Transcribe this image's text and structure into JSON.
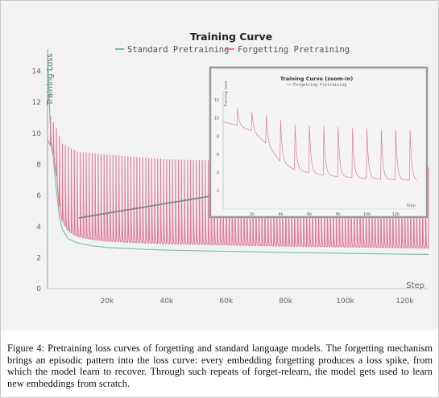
{
  "chart_data": [
    {
      "type": "line",
      "title": "Training Curve",
      "xlabel": "Step",
      "ylabel": "Training Loss",
      "xlim": [
        0,
        128000
      ],
      "ylim": [
        0,
        15
      ],
      "x_ticks": [
        "20k",
        "40k",
        "60k",
        "80k",
        "100k",
        "120k"
      ],
      "y_ticks": [
        "0",
        "2",
        "4",
        "6",
        "8",
        "10",
        "12",
        "14"
      ],
      "grid": false,
      "legend": "top-center",
      "series": [
        {
          "name": "Standard Pretraining",
          "color": "#6fc2a6",
          "x": [
            0,
            1000,
            2000,
            3000,
            4000,
            5000,
            7000,
            10000,
            15000,
            20000,
            30000,
            40000,
            60000,
            80000,
            100000,
            128000
          ],
          "y": [
            15.4,
            10.0,
            8.2,
            6.3,
            4.6,
            3.8,
            3.2,
            2.95,
            2.75,
            2.65,
            2.55,
            2.48,
            2.4,
            2.33,
            2.27,
            2.2
          ]
        },
        {
          "name": "Forgetting Pretraining",
          "color": "#e07a98",
          "baseline_x": [
            0,
            1000,
            2000,
            3000,
            4000,
            5000,
            7000,
            10000,
            15000,
            20000,
            30000,
            40000,
            60000,
            80000,
            100000,
            128000
          ],
          "baseline_y": [
            9.6,
            9.2,
            8.6,
            7.2,
            5.2,
            4.3,
            3.7,
            3.35,
            3.15,
            3.05,
            2.95,
            2.88,
            2.8,
            2.73,
            2.67,
            2.6
          ],
          "spike_interval": 1000,
          "spike_start": 1000,
          "spike_peak_x": [
            0,
            3000,
            5000,
            10000,
            20000,
            40000,
            60000,
            80000,
            100000,
            128000
          ],
          "spike_peak_y": [
            11.5,
            10.3,
            9.3,
            8.8,
            8.6,
            8.3,
            8.2,
            8.0,
            7.9,
            7.8
          ]
        }
      ]
    },
    {
      "type": "line",
      "title": "Training Curve (zoom-in)",
      "xlabel": "Step",
      "ylabel": "Training Loss",
      "xlim": [
        0,
        13500
      ],
      "ylim": [
        0,
        13
      ],
      "x_ticks": [
        "2k",
        "4k",
        "6k",
        "8k",
        "10k",
        "12k"
      ],
      "y_ticks": [
        "2",
        "4",
        "6",
        "8",
        "10",
        "12"
      ],
      "legend": "top-center",
      "series": [
        {
          "name": "Forgetting Pretraining",
          "color": "#e07a98",
          "baseline_x": [
            0,
            1000,
            2000,
            3000,
            4000,
            5000,
            7000,
            10000,
            13500
          ],
          "baseline_y": [
            9.6,
            9.2,
            8.6,
            7.2,
            5.2,
            4.3,
            3.7,
            3.35,
            3.15
          ],
          "spike_interval": 1000,
          "spike_start": 1000,
          "spike_peak_x": [
            0,
            3000,
            5000,
            10000,
            13500
          ],
          "spike_peak_y": [
            11.5,
            10.3,
            9.3,
            8.8,
            8.7
          ]
        }
      ]
    }
  ],
  "annotations": {
    "step_label": "Step",
    "zoom_step_label": "Step"
  },
  "caption": {
    "label": "Figure 4:",
    "text": "Pretraining loss curves of forgetting and standard language models. The forgetting mechanism brings an episodic pattern into the loss curve: every embedding forgetting produces a loss spike, from which the model learn to recover. Through such repeats of forget-relearn, the model gets used to learn new embeddings from scratch."
  }
}
